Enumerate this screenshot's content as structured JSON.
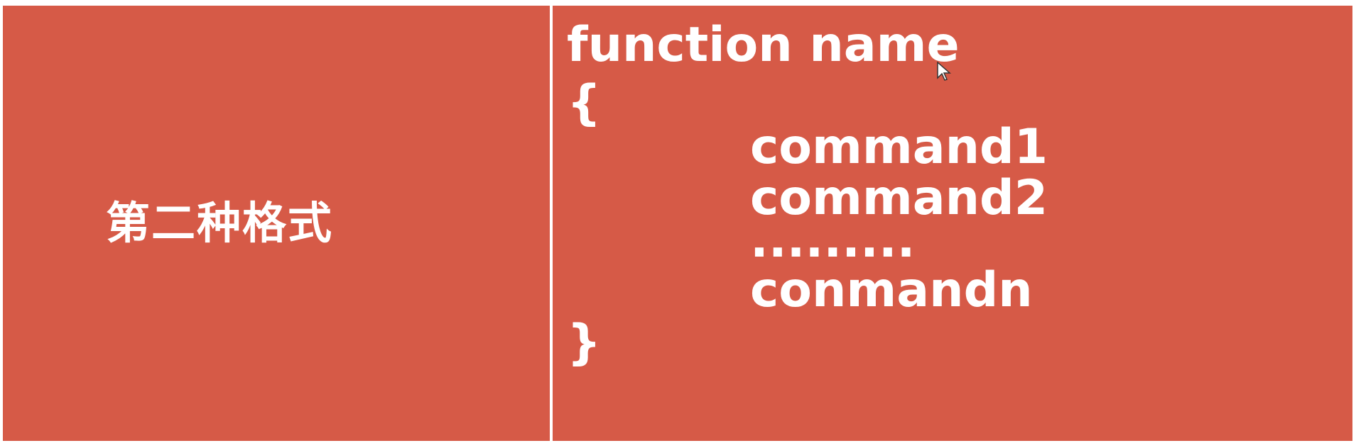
{
  "left_panel": {
    "title": "第二种格式"
  },
  "code": {
    "line1": "function name",
    "line2": "{",
    "line3": "command1",
    "line4": "command2",
    "line5": ".........",
    "line6": "conmandn",
    "line7": "}"
  },
  "colors": {
    "panel_background": "#d65a47",
    "text": "#ffffff",
    "divider": "#ffffff"
  },
  "icons": {
    "cursor": "mouse-pointer-icon"
  }
}
